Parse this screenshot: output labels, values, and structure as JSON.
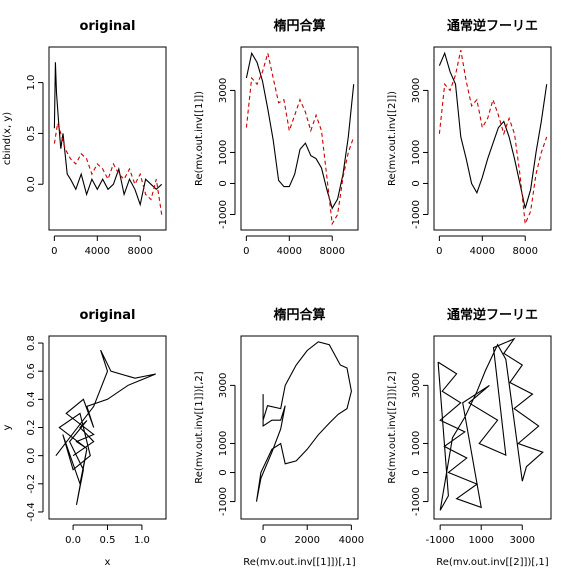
{
  "chart_data": [
    {
      "type": "line",
      "title": "original",
      "xlabel": "",
      "ylabel": "cbind(x, y)",
      "xlim": [
        -500,
        10400
      ],
      "ylim": [
        -0.45,
        1.35
      ],
      "x_ticks": [
        0,
        4000,
        8000
      ],
      "x_tick_labels": [
        "0",
        "4000",
        "8000"
      ],
      "y_ticks": [
        0.0,
        0.5,
        1.0
      ],
      "y_tick_labels": [
        "0.0",
        "0.5",
        "1.0"
      ],
      "grid": false,
      "series": [
        {
          "color": "#000000",
          "style": "solid",
          "x": [
            0,
            100,
            200,
            400,
            600,
            800,
            1000,
            1200,
            1500,
            2000,
            2500,
            3000,
            3500,
            4000,
            4500,
            5000,
            5500,
            6000,
            6500,
            7000,
            7500,
            8000,
            8500,
            9000,
            9500,
            10000
          ],
          "y": [
            0.55,
            1.2,
            0.9,
            0.6,
            0.35,
            0.5,
            0.3,
            0.1,
            0.05,
            -0.05,
            0.1,
            -0.1,
            0.05,
            -0.05,
            0.05,
            -0.05,
            0.0,
            0.15,
            -0.1,
            0.05,
            -0.05,
            -0.2,
            0.05,
            0.0,
            -0.05,
            0.0
          ]
        },
        {
          "color": "#cc0000",
          "style": "dashed",
          "x": [
            0,
            300,
            600,
            1000,
            1500,
            2000,
            2500,
            3000,
            3500,
            4000,
            4500,
            5000,
            5500,
            6000,
            6500,
            7000,
            7500,
            8000,
            8500,
            9000,
            9500,
            10000
          ],
          "y": [
            0.4,
            0.6,
            0.5,
            0.35,
            0.25,
            0.2,
            0.3,
            0.25,
            0.1,
            0.2,
            0.15,
            0.05,
            0.2,
            0.1,
            0.05,
            0.15,
            0.0,
            0.1,
            -0.1,
            -0.15,
            0.05,
            -0.3
          ]
        }
      ]
    },
    {
      "type": "line",
      "title": "楕円合算",
      "xlabel": "",
      "ylabel": "Re(mv.out.inv[[1]])",
      "xlim": [
        -500,
        10400
      ],
      "ylim": [
        -1500,
        4400
      ],
      "x_ticks": [
        0,
        4000,
        8000
      ],
      "x_tick_labels": [
        "0",
        "4000",
        "8000"
      ],
      "y_ticks": [
        -1000,
        0,
        1000,
        3000
      ],
      "y_tick_labels": [
        "-1000",
        "0",
        "1000",
        "3000"
      ],
      "grid": false,
      "series": [
        {
          "color": "#000000",
          "style": "solid",
          "x": [
            0,
            500,
            1000,
            1500,
            2000,
            2500,
            3000,
            3500,
            4000,
            4500,
            5000,
            5500,
            6000,
            6500,
            7000,
            7500,
            8000,
            8500,
            9000,
            9500,
            10000
          ],
          "y": [
            3400,
            4200,
            3900,
            3300,
            2400,
            1400,
            100,
            -100,
            -100,
            300,
            1100,
            1300,
            900,
            800,
            500,
            -200,
            -800,
            -500,
            300,
            1500,
            3200
          ]
        },
        {
          "color": "#cc0000",
          "style": "dashed",
          "x": [
            0,
            500,
            1000,
            1500,
            2000,
            2500,
            3000,
            3500,
            4000,
            4500,
            5000,
            5500,
            6000,
            6500,
            7000,
            7500,
            8000,
            8500,
            9000,
            9500,
            10000
          ],
          "y": [
            1800,
            3400,
            3200,
            3600,
            4200,
            3400,
            2600,
            2700,
            1700,
            2200,
            2700,
            2300,
            1700,
            2200,
            1700,
            200,
            -1300,
            -1000,
            200,
            1000,
            1500
          ]
        }
      ]
    },
    {
      "type": "line",
      "title": "通常逆フーリエ",
      "xlabel": "",
      "ylabel": "Re(mv.out.inv[[2]])",
      "xlim": [
        -500,
        10400
      ],
      "ylim": [
        -1500,
        4400
      ],
      "x_ticks": [
        0,
        4000,
        8000
      ],
      "x_tick_labels": [
        "0",
        "4000",
        "8000"
      ],
      "y_ticks": [
        -1000,
        0,
        1000,
        3000
      ],
      "y_tick_labels": [
        "-1000",
        "0",
        "1000",
        "3000"
      ],
      "grid": false,
      "series": [
        {
          "color": "#000000",
          "style": "solid",
          "x": [
            0,
            500,
            1000,
            1500,
            2000,
            2500,
            3000,
            3500,
            4000,
            4500,
            5000,
            5500,
            6000,
            6500,
            7000,
            7500,
            8000,
            8500,
            9000,
            9500,
            10000
          ],
          "y": [
            3800,
            4200,
            3600,
            3200,
            1500,
            800,
            0,
            -300,
            200,
            800,
            1300,
            1800,
            2000,
            1500,
            800,
            0,
            -800,
            -200,
            1000,
            2000,
            3200
          ]
        },
        {
          "color": "#cc0000",
          "style": "dashed",
          "x": [
            0,
            500,
            1000,
            1500,
            2000,
            2500,
            3000,
            3500,
            4000,
            4500,
            5000,
            5500,
            6000,
            6500,
            7000,
            7500,
            8000,
            8500,
            9000,
            9500,
            10000
          ],
          "y": [
            1600,
            3200,
            3000,
            3500,
            4300,
            3300,
            2500,
            2700,
            1800,
            2100,
            2700,
            2200,
            1600,
            2100,
            1600,
            300,
            -1300,
            -900,
            300,
            1000,
            1500
          ]
        }
      ]
    },
    {
      "type": "line",
      "title": "original",
      "xlabel": "x",
      "ylabel": "y",
      "xlim": [
        -0.35,
        1.35
      ],
      "ylim": [
        -0.45,
        0.85
      ],
      "x_ticks": [
        0.0,
        0.5,
        1.0
      ],
      "x_tick_labels": [
        "0.0",
        "0.5",
        "1.0"
      ],
      "y_ticks": [
        -0.4,
        -0.2,
        0.0,
        0.2,
        0.4,
        0.6,
        0.8
      ],
      "y_tick_labels": [
        "-0.4",
        "-0.2",
        "0.0",
        "0.2",
        "0.4",
        "0.6",
        "0.8"
      ],
      "grid": false,
      "series": [
        {
          "color": "#000000",
          "style": "solid",
          "x": [
            -0.25,
            0.3,
            0.5,
            0.4,
            0.55,
            0.9,
            1.2,
            0.8,
            0.5,
            0.2,
            0.3,
            0.15,
            -0.1,
            0.3,
            0.05,
            0.2,
            -0.2,
            0.1,
            0.25,
            0.0,
            -0.15,
            0.1,
            0.2,
            0.05,
            0.15,
            -0.05,
            0.2,
            0.1,
            0.3,
            0.0
          ],
          "y": [
            0.0,
            0.35,
            0.6,
            0.75,
            0.6,
            0.55,
            0.58,
            0.5,
            0.4,
            0.35,
            0.2,
            0.4,
            0.3,
            0.15,
            0.1,
            0.05,
            0.2,
            0.3,
            0.0,
            -0.1,
            0.15,
            -0.2,
            0.05,
            -0.35,
            -0.1,
            0.1,
            0.25,
            0.2,
            0.1,
            0.0
          ]
        }
      ]
    },
    {
      "type": "line",
      "title": "楕円合算",
      "xlabel": "Re(mv.out.inv[[1]])[,1]",
      "ylabel": "Re(mv.out.inv[[1]])[,2]",
      "xlim": [
        -1000,
        4300
      ],
      "ylim": [
        -1600,
        4700
      ],
      "x_ticks": [
        0,
        2000,
        4000
      ],
      "x_tick_labels": [
        "0",
        "2000",
        "4000"
      ],
      "y_ticks": [
        -1000,
        0,
        1000,
        3000
      ],
      "y_tick_labels": [
        "-1000",
        "0",
        "1000",
        "3000"
      ],
      "grid": false,
      "series": [
        {
          "color": "#000000",
          "style": "solid",
          "x": [
            0,
            0,
            200,
            800,
            1000,
            1500,
            2000,
            2500,
            3000,
            3500,
            3800,
            4000,
            3800,
            3400,
            3000,
            2500,
            2000,
            1500,
            1000,
            800,
            400,
            -100,
            -300,
            -100,
            400,
            800,
            1000,
            800,
            400,
            0,
            0
          ],
          "y": [
            2700,
            1800,
            2300,
            2200,
            3000,
            3700,
            4200,
            4500,
            4400,
            3700,
            3600,
            2800,
            2200,
            2000,
            1700,
            1300,
            800,
            400,
            300,
            1000,
            800,
            0,
            -1000,
            -200,
            700,
            1500,
            2300,
            1800,
            1800,
            1600,
            2700
          ]
        }
      ]
    },
    {
      "type": "line",
      "title": "通常逆フーリエ",
      "xlabel": "Re(mv.out.inv[[2]])[,1]",
      "ylabel": "Re(mv.out.inv[[2]])[,2]",
      "xlim": [
        -1300,
        4400
      ],
      "ylim": [
        -1600,
        4700
      ],
      "x_ticks": [
        -1000,
        1000,
        3000
      ],
      "x_tick_labels": [
        "-1000",
        "1000",
        "3000"
      ],
      "y_ticks": [
        -1000,
        0,
        1000,
        3000
      ],
      "y_tick_labels": [
        "-1000",
        "0",
        "1000",
        "3000"
      ],
      "grid": false,
      "series": [
        {
          "color": "#000000",
          "style": "solid",
          "x": [
            -1100,
            -200,
            -900,
            0,
            -1000,
            200,
            -800,
            300,
            -600,
            800,
            -200,
            1000,
            100,
            1400,
            400,
            1800,
            900,
            2200,
            1600,
            2600,
            2100,
            3000,
            2400,
            3500,
            2600,
            3800,
            2800,
            4000,
            3200,
            3000,
            2200,
            1800,
            1200,
            800,
            200,
            -400,
            -1000,
            -600,
            -1100
          ],
          "y": [
            3800,
            3400,
            2800,
            2400,
            1800,
            1400,
            900,
            500,
            0,
            -400,
            -900,
            -1200,
            2400,
            3000,
            2400,
            1800,
            1000,
            600,
            4300,
            4600,
            4100,
            3700,
            3100,
            2700,
            2200,
            1600,
            1000,
            700,
            200,
            -300,
            3900,
            4400,
            3500,
            2800,
            1900,
            1200,
            -1300,
            -800,
            3800
          ]
        }
      ]
    }
  ]
}
